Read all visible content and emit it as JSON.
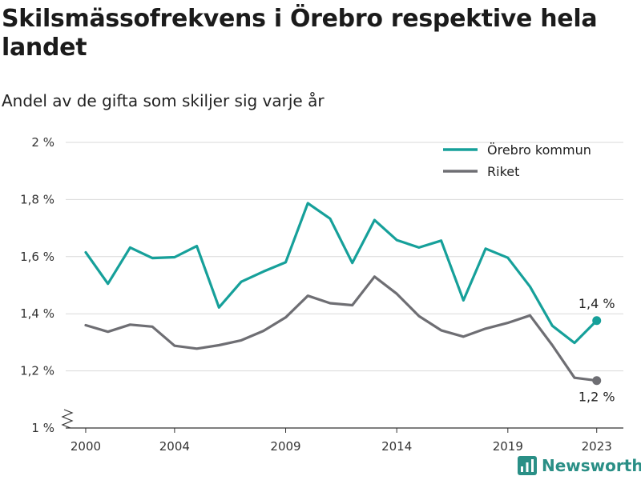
{
  "title": "Skilsmässofrekvens i Örebro respektive hela landet",
  "subtitle": "Andel av de gifta som skiljer sig varje år",
  "brand": "Newsworthy",
  "colors": {
    "orebro": "#16a09a",
    "riket": "#6e6e73",
    "grid": "#d9d9d9",
    "brand": "#2a8f86"
  },
  "chart_data": {
    "type": "line",
    "title": "Skilsmässofrekvens i Örebro respektive hela landet",
    "subtitle": "Andel av de gifta som skiljer sig varje år",
    "xlabel": "",
    "ylabel": "",
    "x": [
      2000,
      2001,
      2002,
      2003,
      2004,
      2005,
      2006,
      2007,
      2008,
      2009,
      2010,
      2011,
      2012,
      2013,
      2014,
      2015,
      2016,
      2017,
      2018,
      2019,
      2020,
      2021,
      2022,
      2023
    ],
    "x_ticks": [
      2000,
      2004,
      2009,
      2014,
      2019,
      2023
    ],
    "x_range": [
      1999.1,
      2024.2
    ],
    "ylim": [
      1.0,
      2.0
    ],
    "y_ticks": [
      1.0,
      1.2,
      1.4,
      1.6,
      1.8,
      2.0
    ],
    "y_tick_labels": [
      "1 %",
      "1,2 %",
      "1,4 %",
      "1,6 %",
      "1,8 %",
      "2 %"
    ],
    "grid": true,
    "legend_position": "top-right",
    "series": [
      {
        "name": "Örebro kommun",
        "color": "#16a09a",
        "values": [
          1.615,
          1.505,
          1.632,
          1.595,
          1.598,
          1.637,
          1.422,
          1.512,
          1.548,
          1.58,
          1.787,
          1.733,
          1.578,
          1.728,
          1.658,
          1.632,
          1.656,
          1.447,
          1.628,
          1.596,
          1.495,
          1.358,
          1.298,
          1.376
        ],
        "end_label": "1,4 %"
      },
      {
        "name": "Riket",
        "color": "#6e6e73",
        "values": [
          1.36,
          1.337,
          1.362,
          1.355,
          1.288,
          1.278,
          1.29,
          1.307,
          1.34,
          1.387,
          1.463,
          1.437,
          1.43,
          1.53,
          1.47,
          1.392,
          1.342,
          1.32,
          1.348,
          1.368,
          1.394,
          1.29,
          1.176,
          1.166
        ],
        "end_label": "1,2 %"
      }
    ]
  }
}
